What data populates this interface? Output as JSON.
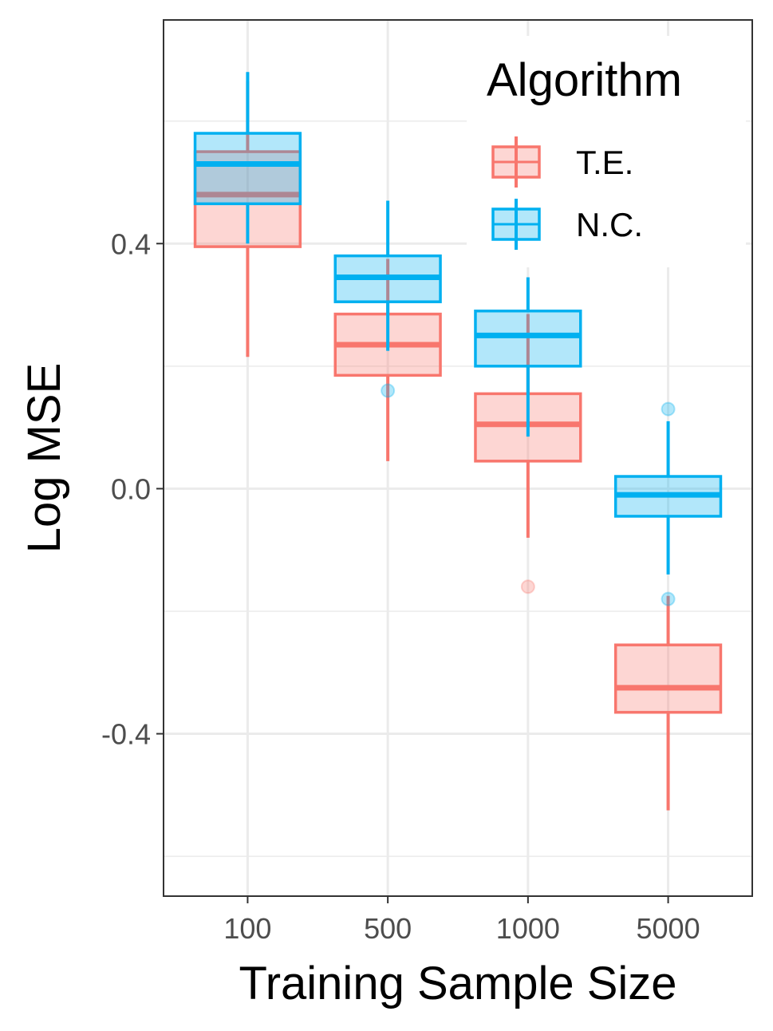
{
  "chart_data": {
    "type": "box",
    "xlabel": "Training Sample Size",
    "ylabel": "Log MSE",
    "categories": [
      "100",
      "500",
      "1000",
      "5000"
    ],
    "ylim": [
      -0.665,
      0.765
    ],
    "yticks": [
      0.4,
      0.0,
      -0.4
    ],
    "ytick_labels": [
      "0.4",
      "0.0",
      "-0.4"
    ],
    "grid": true,
    "legend": {
      "title": "Algorithm",
      "position": "top-right",
      "entries": [
        "T.E.",
        "N.C."
      ]
    },
    "series": [
      {
        "name": "T.E.",
        "color": "#F8766D",
        "fill": "#F8766D",
        "boxes": [
          {
            "category": "100",
            "whisker_low": 0.215,
            "q1": 0.395,
            "median": 0.48,
            "q3": 0.55,
            "whisker_high": 0.665,
            "outliers": []
          },
          {
            "category": "500",
            "whisker_low": 0.045,
            "q1": 0.185,
            "median": 0.235,
            "q3": 0.285,
            "whisker_high": 0.375,
            "outliers": []
          },
          {
            "category": "1000",
            "whisker_low": -0.08,
            "q1": 0.045,
            "median": 0.105,
            "q3": 0.155,
            "whisker_high": 0.285,
            "outliers": [
              -0.16
            ]
          },
          {
            "category": "5000",
            "whisker_low": -0.525,
            "q1": -0.365,
            "median": -0.325,
            "q3": -0.255,
            "whisker_high": -0.175,
            "outliers": []
          }
        ]
      },
      {
        "name": "N.C.",
        "color": "#00B0F0",
        "fill": "#00B0F0",
        "boxes": [
          {
            "category": "100",
            "whisker_low": 0.4,
            "q1": 0.465,
            "median": 0.53,
            "q3": 0.58,
            "whisker_high": 0.68,
            "outliers": []
          },
          {
            "category": "500",
            "whisker_low": 0.225,
            "q1": 0.305,
            "median": 0.345,
            "q3": 0.38,
            "whisker_high": 0.47,
            "outliers": [
              0.16
            ]
          },
          {
            "category": "1000",
            "whisker_low": 0.085,
            "q1": 0.2,
            "median": 0.25,
            "q3": 0.29,
            "whisker_high": 0.345,
            "outliers": []
          },
          {
            "category": "5000",
            "whisker_low": -0.14,
            "q1": -0.045,
            "median": -0.01,
            "q3": 0.02,
            "whisker_high": 0.11,
            "outliers": [
              0.13,
              -0.18
            ]
          }
        ]
      }
    ]
  }
}
